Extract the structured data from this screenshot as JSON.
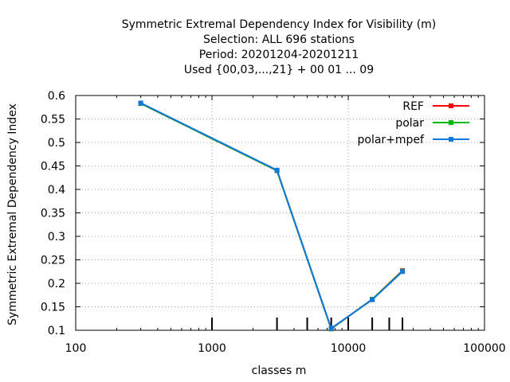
{
  "chart_data": {
    "type": "line",
    "title_lines": [
      "Symmetric Extremal Dependency Index  for Visibility (m)",
      "Selection: ALL    696 stations",
      "Period: 20201204-20201211",
      "Used {00,03,...,21} + 00 01 ... 09"
    ],
    "xlabel": "classes m",
    "ylabel": "Symmetric Extremal Dependency Index",
    "x_scale": "log",
    "xlim": [
      100,
      100000
    ],
    "ylim": [
      0.1,
      0.6
    ],
    "x_ticks": [
      100,
      1000,
      10000,
      100000
    ],
    "x_tick_labels": [
      "100",
      "1000",
      "10000",
      "100000"
    ],
    "y_ticks": [
      0.1,
      0.15,
      0.2,
      0.25,
      0.3,
      0.35,
      0.4,
      0.45,
      0.5,
      0.55,
      0.6
    ],
    "y_tick_labels": [
      "0.1",
      "0.15",
      "0.2",
      "0.25",
      "0.3",
      "0.35",
      "0.4",
      "0.45",
      "0.5",
      "0.55",
      "0.6"
    ],
    "class_marks": [
      1000,
      3000,
      5000,
      7500,
      10000,
      15000,
      20000,
      25000
    ],
    "grid": true,
    "legend_position": "top-right",
    "x": [
      300,
      3000,
      7500,
      15000,
      25000
    ],
    "series": [
      {
        "name": "REF",
        "color": "#ff0000",
        "values": [
          0.583,
          0.44,
          0.103,
          0.166,
          0.227
        ]
      },
      {
        "name": "polar",
        "color": "#00bb00",
        "values": [
          0.583,
          0.44,
          0.103,
          0.166,
          0.226
        ]
      },
      {
        "name": "polar+mpef",
        "color": "#1177dd",
        "values": [
          0.584,
          0.441,
          0.104,
          0.165,
          0.225
        ]
      }
    ]
  }
}
